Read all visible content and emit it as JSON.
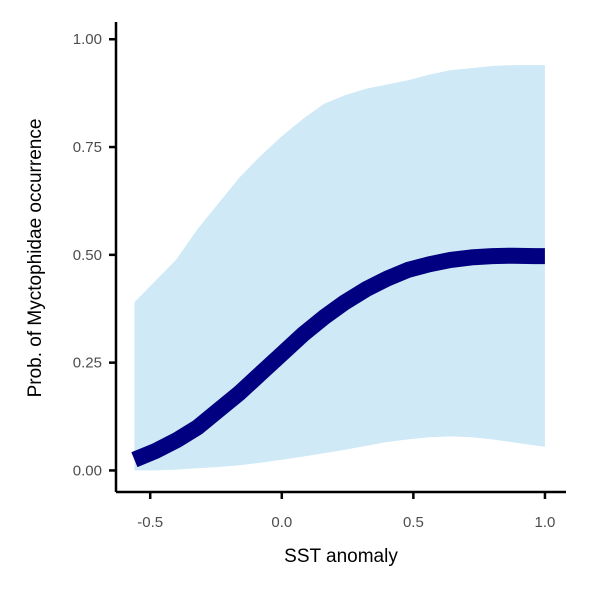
{
  "chart_data": {
    "type": "line",
    "xlabel": "SST anomaly",
    "ylabel": "Prob. of  Myctophidae  occurrence",
    "xlim": [
      -0.63,
      1.08
    ],
    "ylim": [
      -0.05,
      1.04
    ],
    "xticks": [
      -0.5,
      0.0,
      0.5,
      1.0
    ],
    "xtick_labels": [
      "-0.5",
      "0.0",
      "0.5",
      "1.0"
    ],
    "yticks": [
      0.0,
      0.25,
      0.5,
      0.75,
      1.0
    ],
    "ytick_labels": [
      "0.00",
      "0.25",
      "0.50",
      "0.75",
      "1.00"
    ],
    "grid": false,
    "colors": {
      "line": "#000080",
      "ribbon": "#cfe9f6",
      "axis": "#000000"
    },
    "series": [
      {
        "x": [
          -0.56,
          -0.48,
          -0.4,
          -0.32,
          -0.24,
          -0.16,
          -0.08,
          0.0,
          0.08,
          0.16,
          0.24,
          0.32,
          0.4,
          0.48,
          0.56,
          0.64,
          0.72,
          0.8,
          0.88,
          0.96,
          1.0
        ],
        "y": [
          0.025,
          0.045,
          0.07,
          0.1,
          0.14,
          0.18,
          0.225,
          0.27,
          0.315,
          0.355,
          0.39,
          0.42,
          0.445,
          0.465,
          0.478,
          0.488,
          0.494,
          0.497,
          0.498,
          0.497,
          0.497
        ],
        "lower": [
          0.0,
          0.0,
          0.002,
          0.005,
          0.008,
          0.012,
          0.018,
          0.025,
          0.032,
          0.04,
          0.048,
          0.057,
          0.066,
          0.072,
          0.077,
          0.079,
          0.077,
          0.072,
          0.065,
          0.058,
          0.055
        ],
        "upper": [
          0.39,
          0.44,
          0.49,
          0.56,
          0.62,
          0.68,
          0.73,
          0.775,
          0.815,
          0.85,
          0.87,
          0.885,
          0.895,
          0.905,
          0.918,
          0.928,
          0.933,
          0.938,
          0.94,
          0.94,
          0.94
        ]
      }
    ]
  }
}
